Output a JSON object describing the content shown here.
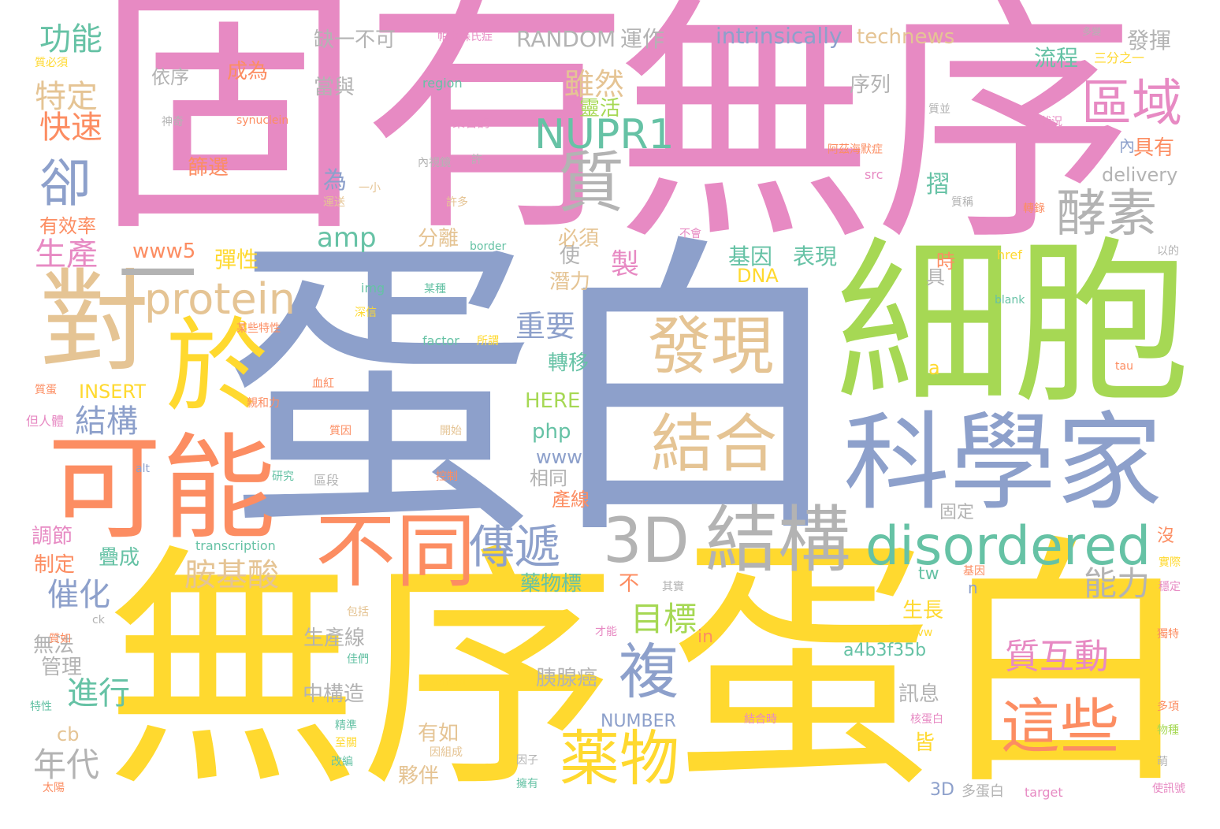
{
  "palette": {
    "pink": "#e78ac3",
    "blue": "#8da0cb",
    "green": "#a6d854",
    "yellow": "#ffd92f",
    "orange": "#fc8d62",
    "teal": "#66c2a5",
    "tan": "#e5c494",
    "gray": "#b3b3b3"
  },
  "words": [
    {
      "text": "固有",
      "color": "pink"
    },
    {
      "text": "無序",
      "color": "pink"
    },
    {
      "text": "蛋白",
      "color": "blue"
    },
    {
      "text": "細胞",
      "color": "green"
    },
    {
      "text": "無序",
      "color": "yellow"
    },
    {
      "text": "蛋白",
      "color": "yellow"
    },
    {
      "text": "科學家",
      "color": "blue"
    },
    {
      "text": "可能",
      "color": "orange"
    },
    {
      "text": "對",
      "color": "tan"
    },
    {
      "text": "於",
      "color": "yellow"
    },
    {
      "text": "3D",
      "color": "gray"
    },
    {
      "text": "結構",
      "color": "gray"
    },
    {
      "text": "disordered",
      "color": "teal"
    },
    {
      "text": "不同",
      "color": "orange"
    },
    {
      "text": "發現",
      "color": "tan"
    },
    {
      "text": "結合",
      "color": "tan"
    },
    {
      "text": "質",
      "color": "gray"
    },
    {
      "text": "酵素",
      "color": "gray"
    },
    {
      "text": "區域",
      "color": "pink"
    },
    {
      "text": "NUPR1",
      "color": "teal"
    },
    {
      "text": "protein",
      "color": "tan"
    },
    {
      "text": "薬物",
      "color": "yellow"
    },
    {
      "text": "這些",
      "color": "orange"
    },
    {
      "text": "質互動",
      "color": "pink"
    },
    {
      "text": "複",
      "color": "blue"
    },
    {
      "text": "傳遞",
      "color": "blue"
    },
    {
      "text": "卻",
      "color": "blue"
    },
    {
      "text": "一",
      "color": "gray"
    },
    {
      "text": "功能",
      "color": "teal"
    },
    {
      "text": "特定",
      "color": "tan"
    },
    {
      "text": "快速",
      "color": "orange"
    },
    {
      "text": "生產",
      "color": "pink"
    },
    {
      "text": "有效率",
      "color": "orange"
    },
    {
      "text": "催化",
      "color": "blue"
    },
    {
      "text": "結構",
      "color": "blue"
    },
    {
      "text": "進行",
      "color": "teal"
    },
    {
      "text": "年代",
      "color": "gray"
    },
    {
      "text": "調節",
      "color": "pink"
    },
    {
      "text": "制定",
      "color": "orange"
    },
    {
      "text": "管理",
      "color": "gray"
    },
    {
      "text": "無法",
      "color": "gray"
    },
    {
      "text": "cb",
      "color": "tan"
    },
    {
      "text": "胺基酸",
      "color": "tan"
    },
    {
      "text": "能力",
      "color": "gray"
    },
    {
      "text": "目標",
      "color": "green"
    },
    {
      "text": "雖然",
      "color": "tan"
    },
    {
      "text": "重要",
      "color": "blue"
    },
    {
      "text": "amp",
      "color": "teal"
    },
    {
      "text": "基因",
      "color": "teal"
    },
    {
      "text": "表現",
      "color": "teal"
    },
    {
      "text": "www5",
      "color": "orange"
    },
    {
      "text": "彈性",
      "color": "yellow"
    },
    {
      "text": "RANDOM",
      "color": "gray"
    },
    {
      "text": "運作",
      "color": "gray"
    },
    {
      "text": "intrinsically",
      "color": "blue"
    },
    {
      "text": "technews",
      "color": "tan"
    },
    {
      "text": "流程",
      "color": "teal"
    },
    {
      "text": "發揮",
      "color": "gray"
    },
    {
      "text": "缺一不可",
      "color": "gray"
    },
    {
      "text": "依序",
      "color": "gray"
    },
    {
      "text": "成為",
      "color": "orange"
    },
    {
      "text": "篩選",
      "color": "orange"
    },
    {
      "text": "當與",
      "color": "gray"
    },
    {
      "text": "序列",
      "color": "gray"
    },
    {
      "text": "靈活",
      "color": "green"
    },
    {
      "text": "為",
      "color": "blue"
    },
    {
      "text": "摺",
      "color": "teal"
    },
    {
      "text": "具有",
      "color": "orange"
    },
    {
      "text": "delivery",
      "color": "gray"
    },
    {
      "text": "分離",
      "color": "tan"
    },
    {
      "text": "必須",
      "color": "tan"
    },
    {
      "text": "製",
      "color": "pink"
    },
    {
      "text": "使",
      "color": "gray"
    },
    {
      "text": "潛力",
      "color": "tan"
    },
    {
      "text": "DNA",
      "color": "yellow"
    },
    {
      "text": "時",
      "color": "orange"
    },
    {
      "text": "具",
      "color": "gray"
    },
    {
      "text": "轉移",
      "color": "teal"
    },
    {
      "text": "HERE",
      "color": "green"
    },
    {
      "text": "php",
      "color": "teal"
    },
    {
      "text": "www",
      "color": "blue"
    },
    {
      "text": "相同",
      "color": "gray"
    },
    {
      "text": "產線",
      "color": "orange"
    },
    {
      "text": "INSERT",
      "color": "yellow"
    },
    {
      "text": "a",
      "color": "yellow"
    },
    {
      "text": "a",
      "color": "yellow"
    },
    {
      "text": "藥物標",
      "color": "teal"
    },
    {
      "text": "不",
      "color": "orange"
    },
    {
      "text": "生長",
      "color": "yellow"
    },
    {
      "text": "生產線",
      "color": "gray"
    },
    {
      "text": "中構造",
      "color": "gray"
    },
    {
      "text": "a4b3f35b",
      "color": "teal"
    },
    {
      "text": "胰腺癌",
      "color": "gray"
    },
    {
      "text": "訊息",
      "color": "gray"
    },
    {
      "text": "皆",
      "color": "yellow"
    },
    {
      "text": "有如",
      "color": "tan"
    },
    {
      "text": "夥伴",
      "color": "tan"
    },
    {
      "text": "NUMBER",
      "color": "blue"
    },
    {
      "text": "3D",
      "color": "blue"
    },
    {
      "text": "多蛋白",
      "color": "gray"
    },
    {
      "text": "tw",
      "color": "teal"
    },
    {
      "text": "n",
      "color": "blue"
    },
    {
      "text": "in",
      "color": "orange"
    },
    {
      "text": "固定",
      "color": "gray"
    },
    {
      "text": "疊成",
      "color": "teal"
    },
    {
      "text": "沒",
      "color": "orange"
    },
    {
      "text": "內",
      "color": "blue"
    },
    {
      "text": "target",
      "color": "pink"
    },
    {
      "text": "transcription",
      "color": "teal"
    },
    {
      "text": "synuclein",
      "color": "orange"
    },
    {
      "text": "region",
      "color": "teal"
    },
    {
      "text": "src",
      "color": "pink"
    },
    {
      "text": "href",
      "color": "yellow"
    },
    {
      "text": "blank",
      "color": "teal"
    },
    {
      "text": "img",
      "color": "teal"
    },
    {
      "text": "factor",
      "color": "teal"
    },
    {
      "text": "border",
      "color": "teal"
    },
    {
      "text": "alt",
      "color": "blue"
    },
    {
      "text": "tau",
      "color": "orange"
    },
    {
      "text": "avw",
      "color": "yellow"
    },
    {
      "text": "zoneid",
      "color": "yellow"
    },
    {
      "text": "ck",
      "color": "gray"
    },
    {
      "text": "帕金森氏症",
      "color": "pink"
    },
    {
      "text": "多變",
      "color": "gray"
    },
    {
      "text": "三分之一",
      "color": "yellow"
    },
    {
      "text": "神奇",
      "color": "gray"
    },
    {
      "text": "聚合酶",
      "color": "pink"
    },
    {
      "text": "內視鏡",
      "color": "gray"
    },
    {
      "text": "許",
      "color": "gray"
    },
    {
      "text": "許多",
      "color": "tan"
    },
    {
      "text": "運送",
      "color": "tan"
    },
    {
      "text": "一小",
      "color": "tan"
    },
    {
      "text": "質必須",
      "color": "yellow"
    },
    {
      "text": "質並",
      "color": "gray"
    },
    {
      "text": "狀況",
      "color": "pink"
    },
    {
      "text": "阿茲海默症",
      "color": "orange"
    },
    {
      "text": "質稱",
      "color": "gray"
    },
    {
      "text": "轉錄",
      "color": "orange"
    },
    {
      "text": "某種",
      "color": "teal"
    },
    {
      "text": "深信",
      "color": "yellow"
    },
    {
      "text": "所謂",
      "color": "yellow"
    },
    {
      "text": "某些特性",
      "color": "orange"
    },
    {
      "text": "質蛋",
      "color": "orange"
    },
    {
      "text": "質因",
      "color": "orange"
    },
    {
      "text": "開始",
      "color": "tan"
    },
    {
      "text": "控制",
      "color": "orange"
    },
    {
      "text": "但人體",
      "color": "pink"
    },
    {
      "text": "研究",
      "color": "teal"
    },
    {
      "text": "區段",
      "color": "gray"
    },
    {
      "text": "血紅",
      "color": "orange"
    },
    {
      "text": "親和力",
      "color": "orange"
    },
    {
      "text": "包括",
      "color": "tan"
    },
    {
      "text": "質如",
      "color": "orange"
    },
    {
      "text": "佳們",
      "color": "teal"
    },
    {
      "text": "特性",
      "color": "teal"
    },
    {
      "text": "改編",
      "color": "teal"
    },
    {
      "text": "至關",
      "color": "yellow"
    },
    {
      "text": "精準",
      "color": "teal"
    },
    {
      "text": "因組成",
      "color": "tan"
    },
    {
      "text": "因子",
      "color": "gray"
    },
    {
      "text": "擁有",
      "color": "teal"
    },
    {
      "text": "注意",
      "color": "yellow"
    },
    {
      "text": "結合時",
      "color": "pink"
    },
    {
      "text": "核蛋白",
      "color": "pink"
    },
    {
      "text": "多項",
      "color": "orange"
    },
    {
      "text": "物種",
      "color": "green"
    },
    {
      "text": "萌",
      "color": "gray"
    },
    {
      "text": "使訊號",
      "color": "pink"
    },
    {
      "text": "太陽",
      "color": "orange"
    },
    {
      "text": "獨特",
      "color": "orange"
    },
    {
      "text": "穩定",
      "color": "pink"
    },
    {
      "text": "實際",
      "color": "yellow"
    },
    {
      "text": "基因",
      "color": "orange"
    },
    {
      "text": "以的",
      "color": "gray"
    },
    {
      "text": "不會",
      "color": "pink"
    },
    {
      "text": "才能",
      "color": "pink"
    },
    {
      "text": "其實",
      "color": "gray"
    }
  ]
}
